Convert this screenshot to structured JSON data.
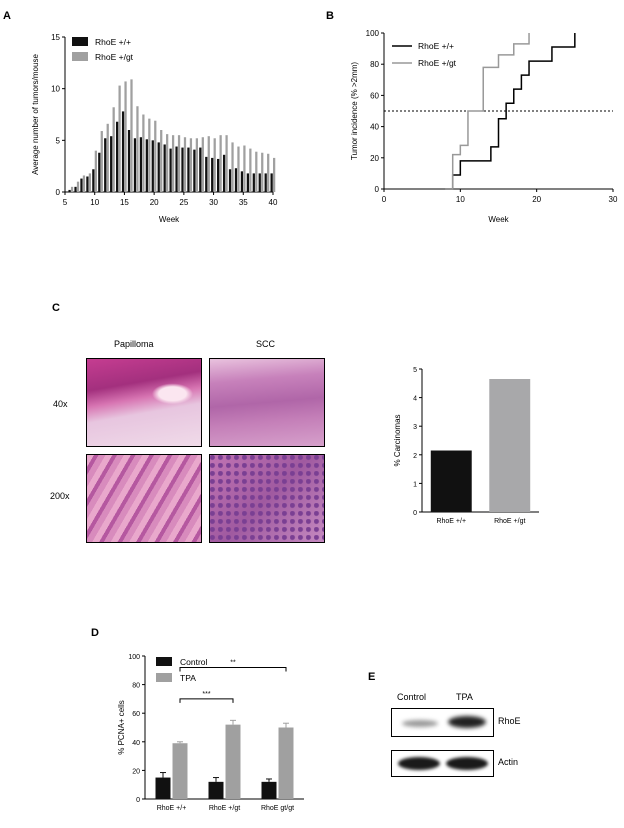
{
  "colors": {
    "black_bar": "#111111",
    "grey_bar": "#a0a0a0",
    "axis": "#000000"
  },
  "panel_labels": {
    "a": "A",
    "b": "B",
    "c": "C",
    "d": "D",
    "e": "E"
  },
  "chart_data": [
    {
      "id": "A",
      "type": "bar",
      "xlabel": "Week",
      "ylabel": "Average number of tumors/mouse",
      "xlim": [
        5,
        40
      ],
      "ylim": [
        0,
        15
      ],
      "xticks": [
        5,
        10,
        15,
        20,
        25,
        30,
        35,
        40
      ],
      "yticks": [
        0,
        5,
        10,
        15
      ],
      "legend": "top-left",
      "x": [
        6,
        7,
        8,
        9,
        10,
        11,
        12,
        13,
        14,
        15,
        16,
        17,
        18,
        19,
        20,
        21,
        22,
        23,
        24,
        25,
        26,
        27,
        28,
        29,
        30,
        31,
        32,
        33,
        34,
        35,
        36,
        37,
        38,
        39,
        40
      ],
      "series": [
        {
          "name": "RhoE +/+",
          "color": "#111111",
          "values": [
            0.2,
            0.5,
            1.3,
            1.5,
            2.2,
            3.8,
            5.2,
            5.4,
            6.8,
            7.8,
            6.0,
            5.2,
            5.3,
            5.1,
            5.0,
            4.8,
            4.6,
            4.2,
            4.4,
            4.3,
            4.3,
            4.1,
            4.3,
            3.4,
            3.3,
            3.2,
            3.6,
            2.2,
            2.3,
            2.0,
            1.8,
            1.8,
            1.8,
            1.8,
            1.8
          ]
        },
        {
          "name": "RhoE +/gt",
          "color": "#a0a0a0",
          "values": [
            0.5,
            1.0,
            1.6,
            1.8,
            4.0,
            5.9,
            6.6,
            8.2,
            10.3,
            10.7,
            10.9,
            8.3,
            7.5,
            7.1,
            6.9,
            6.0,
            5.6,
            5.5,
            5.5,
            5.3,
            5.2,
            5.2,
            5.3,
            5.4,
            5.2,
            5.5,
            5.5,
            4.8,
            4.4,
            4.5,
            4.2,
            3.9,
            3.8,
            3.7,
            3.3
          ]
        }
      ]
    },
    {
      "id": "B",
      "type": "line",
      "step": true,
      "xlabel": "Week",
      "ylabel": "Tumor incidence (% >2mm)",
      "xlim": [
        0,
        30
      ],
      "ylim": [
        0,
        100
      ],
      "xticks": [
        0,
        10,
        20,
        30
      ],
      "yticks": [
        0,
        20,
        40,
        60,
        80,
        100
      ],
      "reference_line": 50,
      "legend": "top-left",
      "series": [
        {
          "name": "RhoE +/+",
          "color": "#000000",
          "x": [
            8,
            9,
            10,
            14,
            15,
            16,
            17,
            18,
            19,
            22,
            23,
            25
          ],
          "y": [
            0,
            9,
            18,
            27,
            45,
            55,
            64,
            73,
            82,
            91,
            91,
            100
          ]
        },
        {
          "name": "RhoE +/gt",
          "color": "#999999",
          "x": [
            8,
            9,
            10,
            11,
            13,
            14,
            15,
            17,
            19
          ],
          "y": [
            0,
            22,
            28,
            50,
            78,
            78,
            86,
            93,
            100
          ]
        }
      ]
    },
    {
      "id": "C",
      "type": "bar",
      "ylabel": "% Carcinomas",
      "categories": [
        "RhoE +/+",
        "RhoE +/gt"
      ],
      "values": [
        2.15,
        4.65
      ],
      "colors": [
        "#111111",
        "#a8a8aa"
      ],
      "ylim": [
        0,
        5
      ],
      "yticks": [
        0,
        1,
        2,
        3,
        4,
        5
      ]
    },
    {
      "id": "D",
      "type": "bar",
      "ylabel": "% PCNA+ cells",
      "categories": [
        "RhoE +/+",
        "RhoE +/gt",
        "RhoE gt/gt"
      ],
      "ylim": [
        0,
        100
      ],
      "yticks": [
        0,
        20,
        40,
        60,
        80,
        100
      ],
      "legend": "top-left",
      "series": [
        {
          "name": "Control",
          "color": "#111111",
          "values": [
            15,
            12,
            12
          ],
          "errors": [
            3.5,
            3,
            2
          ]
        },
        {
          "name": "TPA",
          "color": "#a0a0a0",
          "values": [
            39,
            52,
            50
          ],
          "errors": [
            1,
            3,
            3
          ]
        }
      ],
      "significance": [
        {
          "from": 0,
          "to": 1,
          "label": "***"
        },
        {
          "from": 0,
          "to": 2,
          "label": "**"
        }
      ]
    }
  ],
  "histology": {
    "col_papilloma": "Papilloma",
    "col_scc": "SCC",
    "row_40x": "40x",
    "row_200x": "200x"
  },
  "western_blot": {
    "lane_control": "Control",
    "lane_tpa": "TPA",
    "band_rhoe": "RhoE",
    "band_actin": "Actin"
  }
}
